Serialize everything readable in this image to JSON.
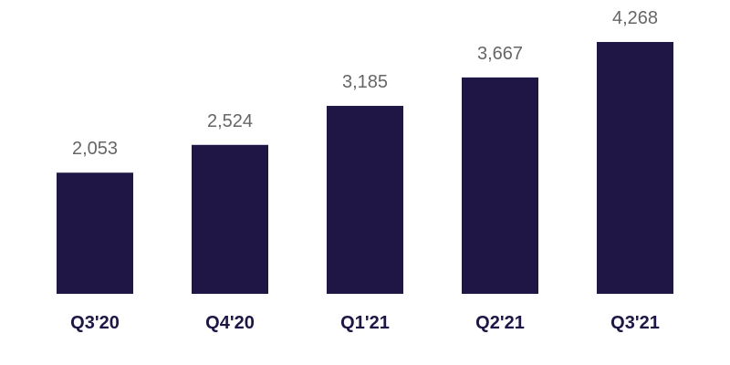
{
  "chart_data": {
    "type": "bar",
    "categories": [
      "Q3'20",
      "Q4'20",
      "Q1'21",
      "Q2'21",
      "Q3'21"
    ],
    "values": [
      2053,
      2524,
      3185,
      3667,
      4268
    ],
    "value_labels": [
      "2,053",
      "2,524",
      "3,185",
      "3,667",
      "4,268"
    ],
    "title": "",
    "xlabel": "",
    "ylabel": "",
    "ylim": [
      0,
      4268
    ],
    "grid": false,
    "legend": "none",
    "bar_color": "#1f1646",
    "value_label_color": "#666666",
    "category_label_color": "#1f1646"
  }
}
